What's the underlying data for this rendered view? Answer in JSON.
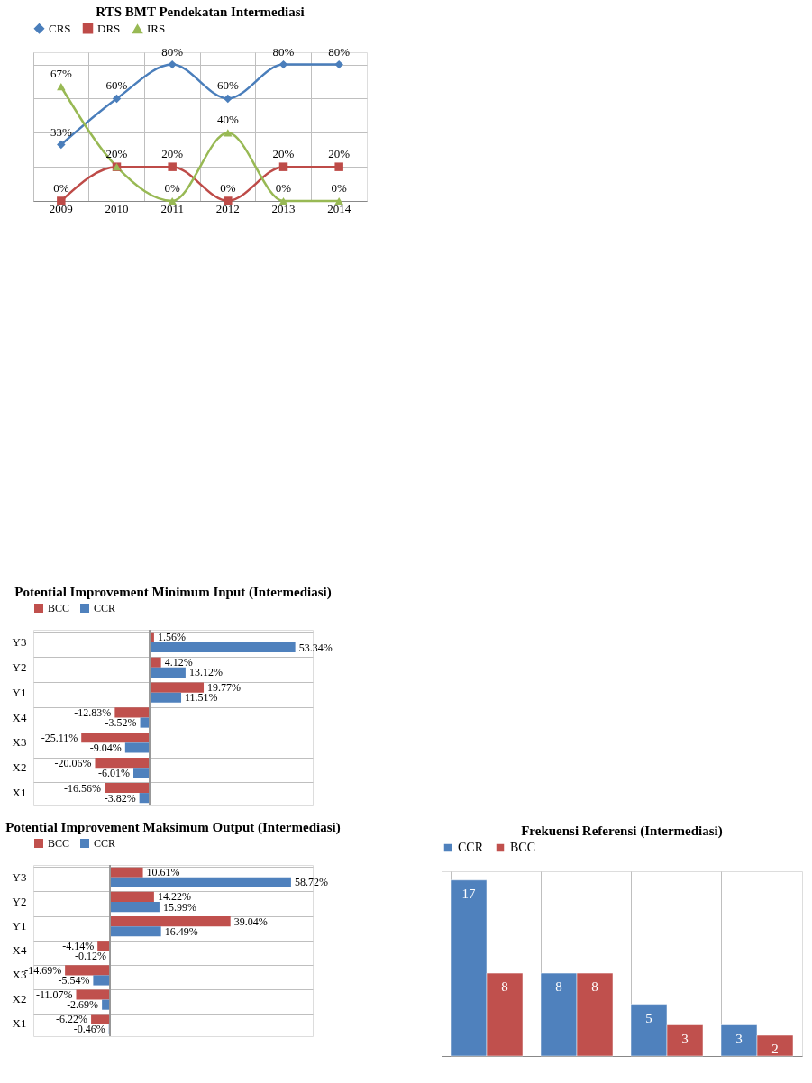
{
  "chart_data": [
    {
      "type": "line",
      "title": "RTS BMT Pendekatan Intermediasi",
      "categories": [
        "2009",
        "2010",
        "2011",
        "2012",
        "2013",
        "2014"
      ],
      "grid": true,
      "legend": "top",
      "line_style": "solid",
      "tick_labels": "x",
      "series": [
        {
          "name": "CRS",
          "color": "#4a7ebb",
          "marker": "diamond",
          "values": [
            33,
            60,
            80,
            60,
            80,
            80
          ],
          "value_labels": [
            "33%",
            "60%",
            "80%",
            "60%",
            "80%",
            "80%"
          ]
        },
        {
          "name": "DRS",
          "color": "#be4b48",
          "marker": "square",
          "values": [
            0,
            20,
            20,
            0,
            20,
            20
          ],
          "value_labels": [
            "0%",
            "20%",
            "20%",
            "0%",
            "20%",
            "20%"
          ]
        },
        {
          "name": "IRS",
          "color": "#98b954",
          "marker": "triangle",
          "values": [
            67,
            20,
            0,
            40,
            0,
            0
          ],
          "value_labels": [
            "67%",
            null,
            "0%",
            "40%",
            "0%",
            "0%"
          ]
        }
      ]
    },
    {
      "type": "bar",
      "orientation": "horizontal",
      "title": "Potential Improvement Minimum Input (Intermediasi)",
      "categories": [
        "Y3",
        "Y2",
        "Y1",
        "X4",
        "X3",
        "X2",
        "X1"
      ],
      "grid": "y",
      "legend": "top",
      "tick_labels": "y",
      "series": [
        {
          "name": "BCC",
          "color": "#c0504d",
          "values": [
            1.56,
            4.12,
            19.77,
            -12.83,
            -25.11,
            -20.06,
            -16.56
          ],
          "value_labels": [
            "1.56%",
            "4.12%",
            "19.77%",
            "-12.83%",
            "-25.11%",
            "-20.06%",
            "-16.56%"
          ]
        },
        {
          "name": "CCR",
          "color": "#4f81bd",
          "values": [
            53.34,
            13.12,
            11.51,
            -3.52,
            -9.04,
            -6.01,
            -3.82
          ],
          "value_labels": [
            "53.34%",
            "13.12%",
            "11.51%",
            "-3.52%",
            "-9.04%",
            "-6.01%",
            "-3.82%"
          ]
        }
      ]
    },
    {
      "type": "bar",
      "orientation": "horizontal",
      "title": "Potential Improvement Maksimum Output (Intermediasi)",
      "categories": [
        "Y3",
        "Y2",
        "Y1",
        "X4",
        "X3",
        "X2",
        "X1"
      ],
      "grid": "y",
      "legend": "top",
      "tick_labels": "y",
      "series": [
        {
          "name": "BCC",
          "color": "#c0504d",
          "values": [
            10.61,
            14.22,
            39.04,
            -4.14,
            -14.69,
            -11.07,
            -6.22
          ],
          "value_labels": [
            "10.61%",
            "14.22%",
            "39.04%",
            "-4.14%",
            "-14.69%",
            "-11.07%",
            "-6.22%"
          ]
        },
        {
          "name": "CCR",
          "color": "#4f81bd",
          "values": [
            58.72,
            15.99,
            16.49,
            -0.12,
            -5.54,
            -2.69,
            -0.46
          ],
          "value_labels": [
            "58.72%",
            "15.99%",
            "16.49%",
            "-0.12%",
            "-5.54%",
            "-2.69%",
            "-0.46%"
          ]
        }
      ]
    },
    {
      "type": "bar",
      "title": "Frekuensi Referensi (Intermediasi)",
      "categories": [
        null,
        null,
        null,
        null
      ],
      "grid": "x",
      "legend": "top",
      "data_labels": true,
      "tick_labels": "x",
      "series": [
        {
          "name": "CCR",
          "color": "#4f81bd",
          "values": [
            17,
            8,
            5,
            3
          ]
        },
        {
          "name": "BCC",
          "color": "#c0504d",
          "values": [
            8,
            8,
            3,
            2
          ]
        }
      ]
    }
  ]
}
